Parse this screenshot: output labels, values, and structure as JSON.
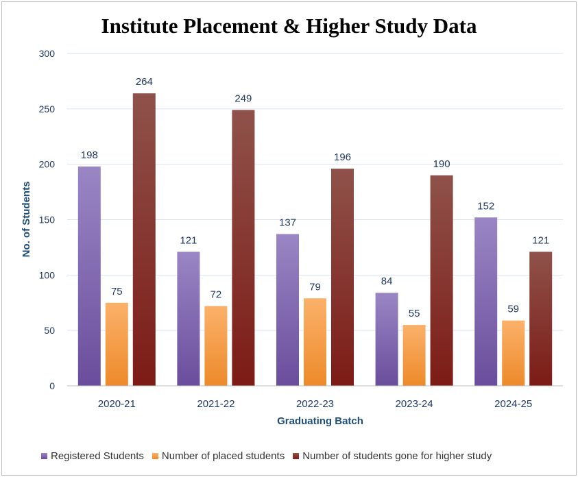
{
  "chart_data": {
    "type": "bar",
    "title": "Institute Placement & Higher Study Data",
    "xlabel": "Graduating Batch",
    "ylabel": "No. of Students",
    "ylim": [
      0,
      300
    ],
    "yticks": [
      "0",
      "50",
      "100",
      "150",
      "200",
      "250",
      "300"
    ],
    "categories": [
      "2020-21",
      "2021-22",
      "2022-23",
      "2023-24",
      "2024-25"
    ],
    "series": [
      {
        "name": "Registered Students",
        "values": [
          198,
          121,
          137,
          84,
          152
        ],
        "color_top": "#9a86c4",
        "color_bottom": "#6a4d9c"
      },
      {
        "name": "Number of placed students",
        "values": [
          75,
          72,
          79,
          55,
          59
        ],
        "color_top": "#fbb16a",
        "color_bottom": "#ed8a2a"
      },
      {
        "name": "Number of students gone for higher study",
        "values": [
          264,
          249,
          196,
          190,
          121
        ],
        "color_top": "#8e524a",
        "color_bottom": "#7d1b16"
      }
    ],
    "grid": true,
    "legend_position": "bottom"
  }
}
